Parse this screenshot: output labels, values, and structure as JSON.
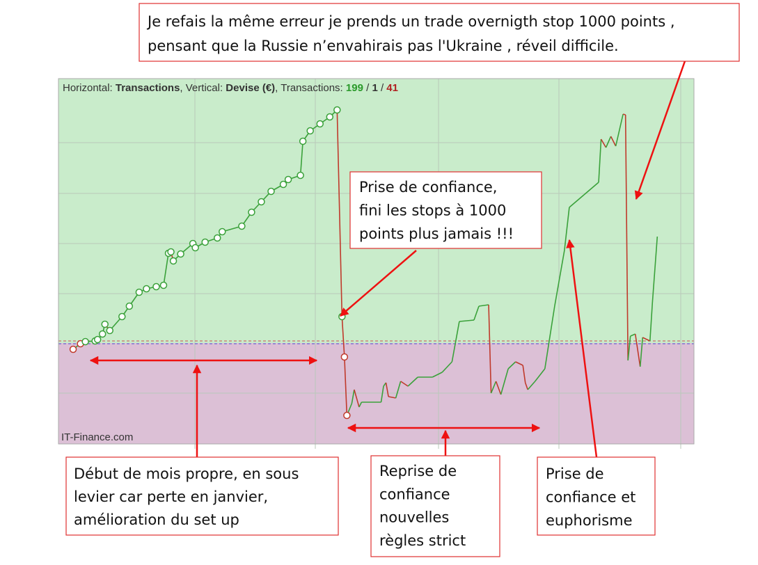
{
  "header": {
    "horizontal_label": "Horizontal:",
    "horizontal_value": "Transactions",
    "vertical_label": ", Vertical:",
    "vertical_value": "Devise (€)",
    "transactions_label": ", Transactions:",
    "wins": 199,
    "even": 1,
    "losses": 41,
    "separator": "/"
  },
  "watermark": "IT-Finance.com",
  "annotations": {
    "top": [
      "Je refais la même erreur je prends un trade overnigth stop 1000 points ,",
      "pensant que la Russie n’envahirais pas l'Ukraine , réveil difficile."
    ],
    "confidence": [
      "Prise de confiance,",
      "fini les stops à 1000",
      "points plus jamais  !!!"
    ],
    "start": [
      "Début de mois propre, en sous",
      "levier car perte en janvier,",
      "amélioration du set up"
    ],
    "resume": [
      "Reprise de",
      "confiance",
      "nouvelles",
      "règles strict"
    ],
    "euphoria": [
      "Prise de",
      "confiance et",
      "euphorisme"
    ]
  },
  "chart_data": {
    "type": "line",
    "xlim": [
      -5,
      255
    ],
    "ylim": [
      -145,
      380
    ],
    "up_color": "#3aa13a",
    "down_color": "#c0392b",
    "x": [
      1,
      4,
      6,
      10,
      11,
      13,
      14,
      16,
      21,
      24,
      28,
      31,
      35,
      38,
      40,
      41,
      42,
      45,
      50,
      51,
      55,
      60,
      62,
      70,
      74,
      78,
      82,
      87,
      89,
      94,
      95,
      98,
      102,
      106,
      109,
      111,
      112,
      113,
      115,
      116,
      118,
      119,
      127,
      128,
      129,
      130,
      133,
      135,
      138,
      142,
      148,
      152,
      156,
      159,
      165,
      167,
      171,
      172,
      174,
      176,
      179,
      182,
      185,
      186,
      187,
      190,
      194,
      198,
      200,
      202,
      204,
      210,
      216,
      217,
      219,
      221,
      223,
      226,
      227,
      228,
      229,
      231,
      233,
      234,
      237,
      238,
      240
    ],
    "values": [
      -9,
      -1,
      2,
      3,
      5,
      13,
      27,
      18,
      38,
      53,
      73,
      78,
      81,
      83,
      129,
      131,
      118,
      128,
      143,
      137,
      145,
      151,
      160,
      168,
      188,
      203,
      218,
      228,
      235,
      241,
      290,
      305,
      315,
      325,
      335,
      38,
      -20,
      -104,
      -87,
      -67,
      -92,
      -85,
      -85,
      -62,
      -57,
      -77,
      -79,
      -55,
      -62,
      -49,
      -49,
      -42,
      -27,
      31,
      33,
      53,
      55,
      -72,
      -55,
      -74,
      -37,
      -27,
      -32,
      -57,
      -67,
      -55,
      -37,
      53,
      93,
      133,
      195,
      213,
      231,
      293,
      281,
      297,
      283,
      329,
      328,
      -25,
      10,
      13,
      -34,
      8,
      3,
      58,
      153
    ]
  }
}
